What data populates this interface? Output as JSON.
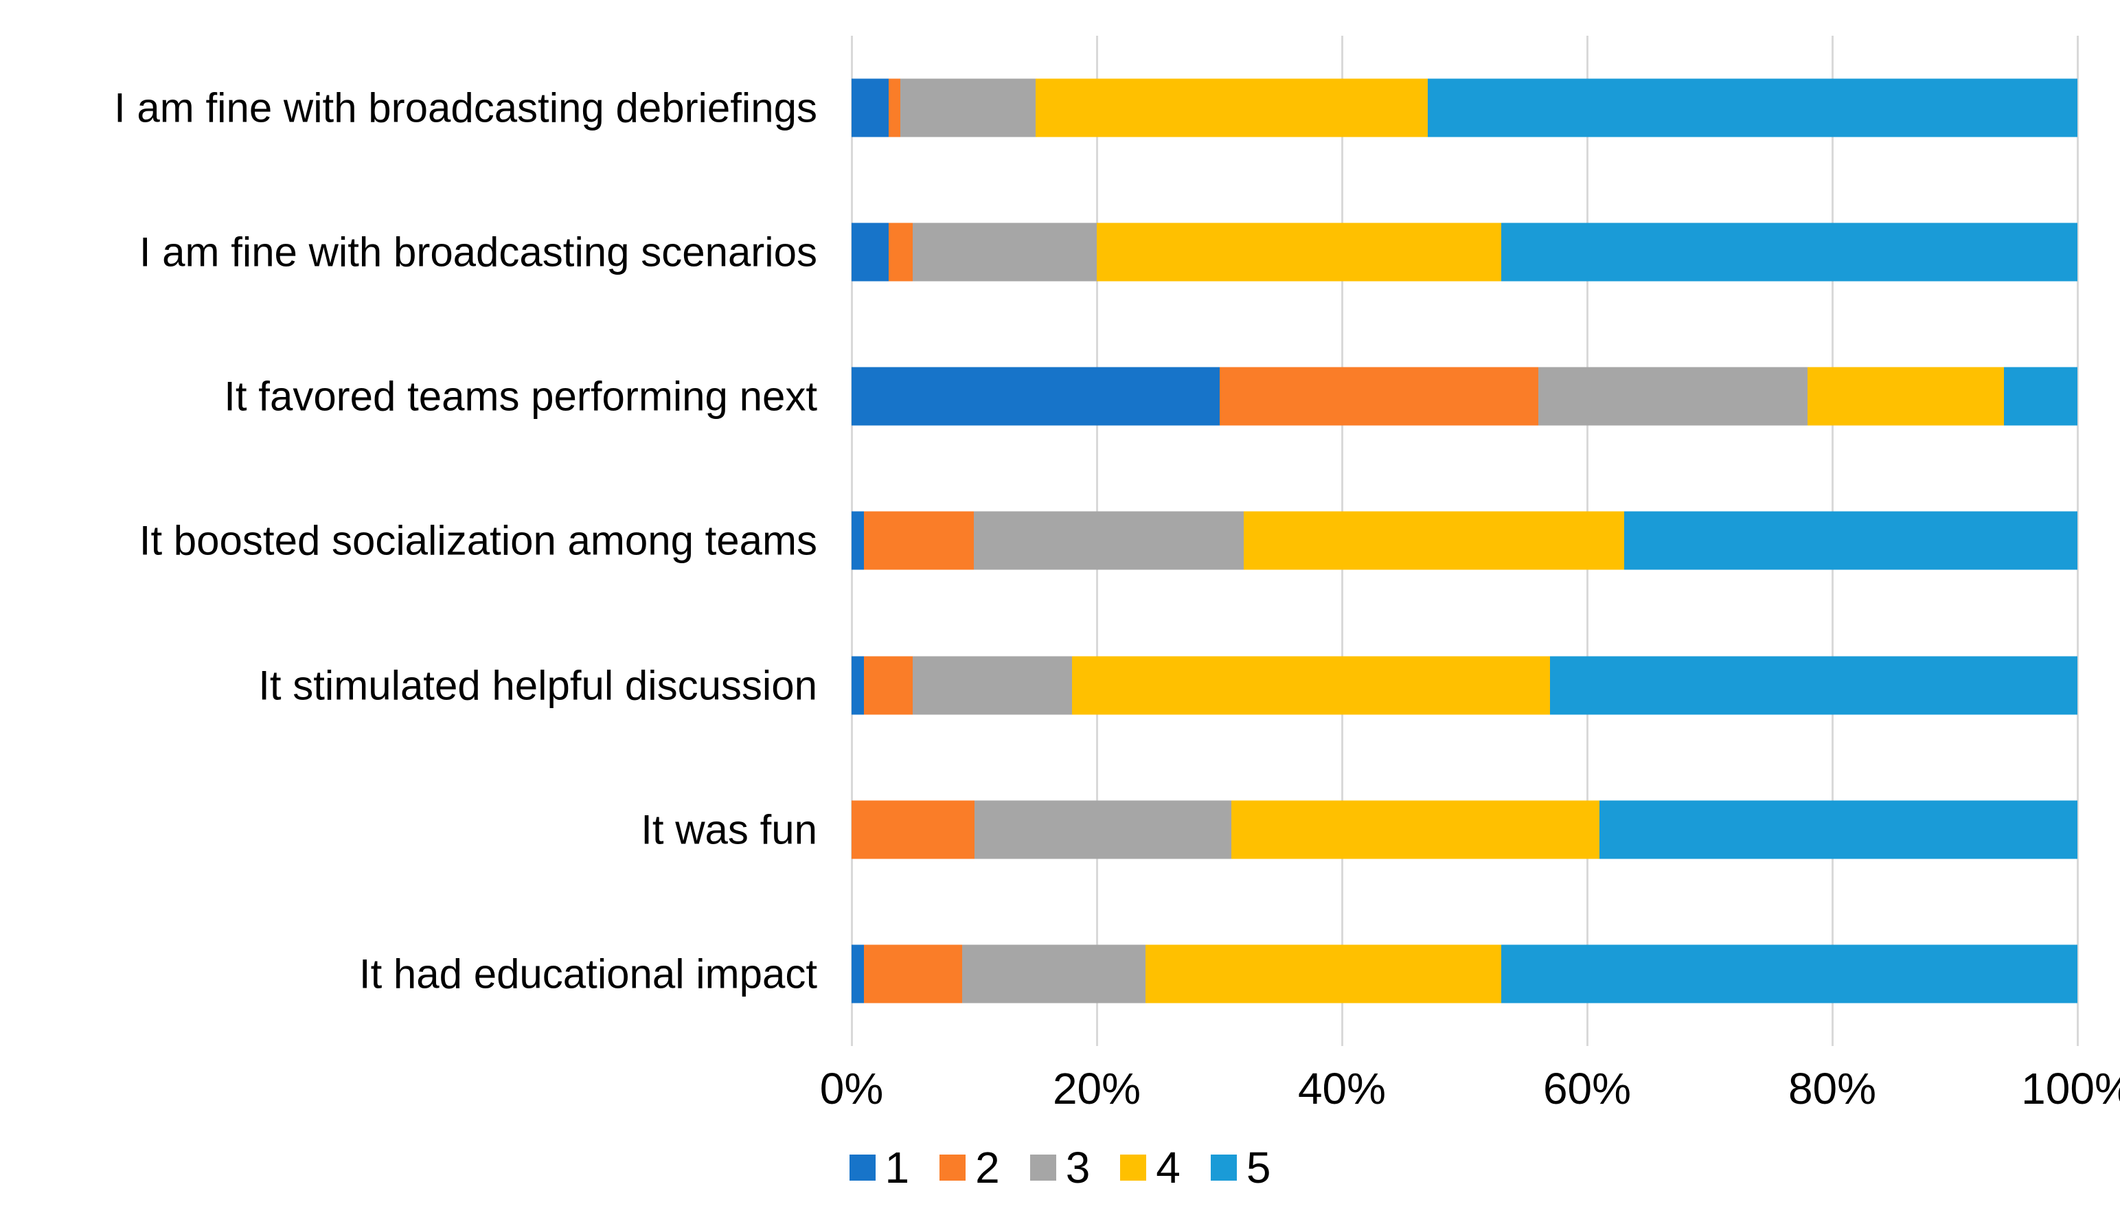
{
  "chart_data": {
    "type": "bar",
    "orientation": "horizontal",
    "stacked": true,
    "unit": "%",
    "title": "",
    "xlabel": "",
    "ylabel": "",
    "categories": [
      "I am fine with broadcasting debriefings",
      "I am fine with broadcasting scenarios",
      "It favored teams performing next",
      "It boosted socialization among teams",
      "It stimulated helpful discussion",
      "It was fun",
      "It had educational impact"
    ],
    "series": [
      {
        "name": "1",
        "color": "#1774C9",
        "values": [
          3,
          3,
          30,
          1,
          1,
          0,
          1
        ]
      },
      {
        "name": "2",
        "color": "#FA7D28",
        "values": [
          1,
          2,
          26,
          9,
          4,
          10,
          8
        ]
      },
      {
        "name": "3",
        "color": "#A6A6A6",
        "values": [
          11,
          15,
          22,
          22,
          13,
          21,
          15
        ]
      },
      {
        "name": "4",
        "color": "#FFC000",
        "values": [
          32,
          33,
          16,
          31,
          39,
          30,
          29
        ]
      },
      {
        "name": "5",
        "color": "#1A9BD7",
        "values": [
          53,
          47,
          6,
          37,
          43,
          39,
          47
        ]
      }
    ],
    "x_ticks": [
      "0%",
      "20%",
      "40%",
      "60%",
      "80%",
      "100%"
    ],
    "x_tick_values": [
      0,
      20,
      40,
      60,
      80,
      100
    ],
    "xlim": [
      0,
      100
    ],
    "grid": true,
    "gridline_color": "#D9D9D9",
    "legend": {
      "position": "bottom-center",
      "entries": [
        "1",
        "2",
        "3",
        "4",
        "5"
      ]
    },
    "background": "#FFFFFF",
    "text_color": "#000000"
  }
}
